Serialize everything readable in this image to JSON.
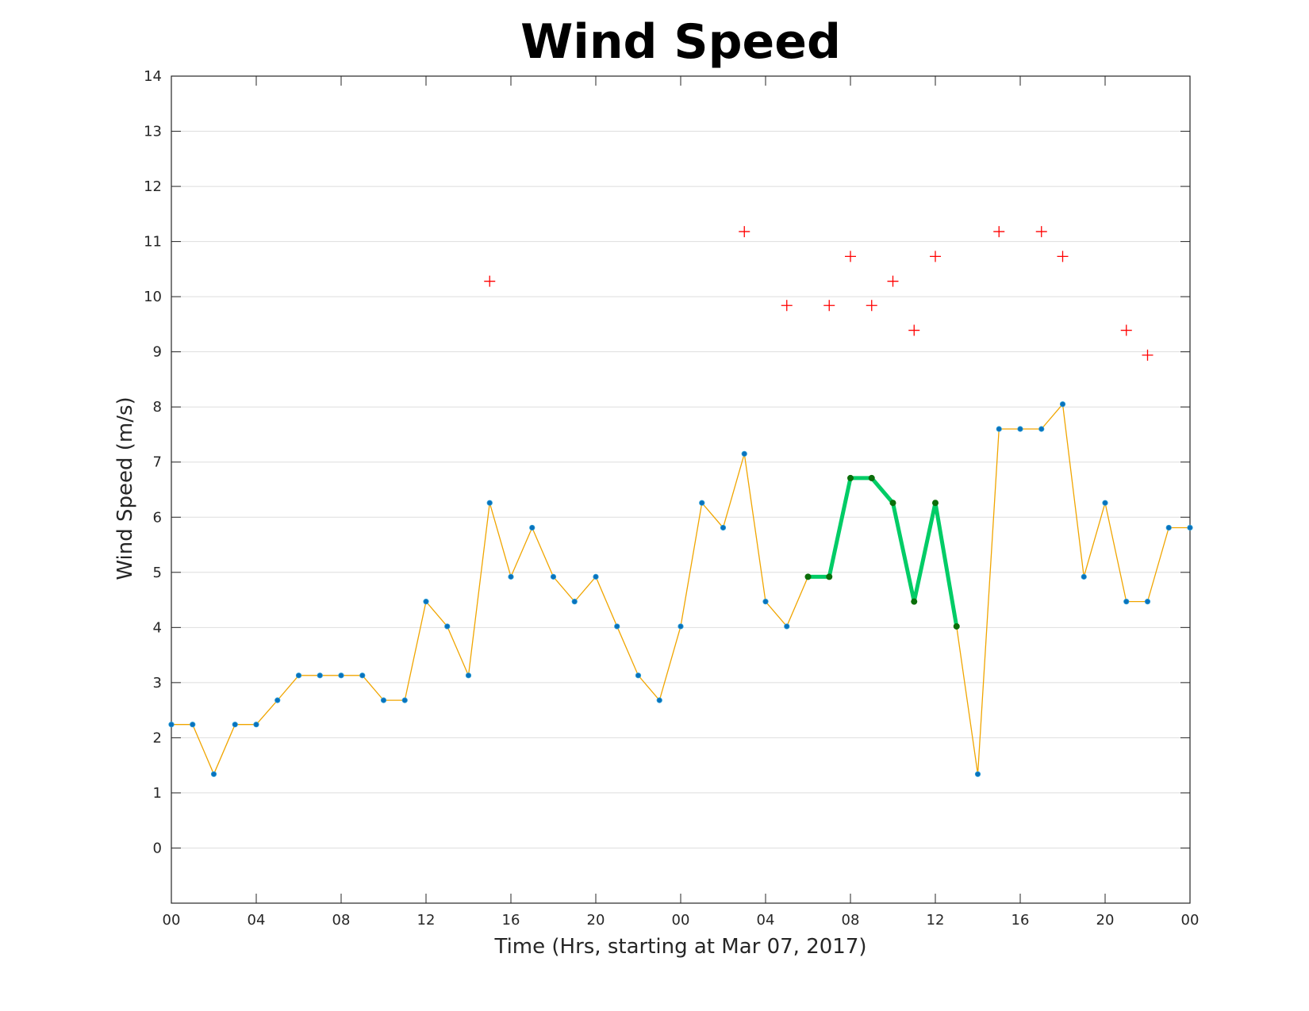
{
  "chart_data": {
    "type": "line",
    "title": "Wind Speed",
    "xlabel": "Time (Hrs, starting at Mar 07, 2017)",
    "ylabel": "Wind Speed (m/s)",
    "xlim": [
      0,
      48
    ],
    "ylim": [
      -1,
      14
    ],
    "grid": "horizontal",
    "x_ticks": [
      {
        "value": 0,
        "label": "00"
      },
      {
        "value": 4,
        "label": "04"
      },
      {
        "value": 8,
        "label": "08"
      },
      {
        "value": 12,
        "label": "12"
      },
      {
        "value": 16,
        "label": "16"
      },
      {
        "value": 20,
        "label": "20"
      },
      {
        "value": 24,
        "label": "00"
      },
      {
        "value": 28,
        "label": "04"
      },
      {
        "value": 32,
        "label": "08"
      },
      {
        "value": 36,
        "label": "12"
      },
      {
        "value": 40,
        "label": "16"
      },
      {
        "value": 44,
        "label": "20"
      },
      {
        "value": 48,
        "label": "00"
      }
    ],
    "y_ticks": [
      0,
      1,
      2,
      3,
      4,
      5,
      6,
      7,
      8,
      9,
      10,
      11,
      12,
      13,
      14
    ],
    "series": [
      {
        "style": "line-with-dots",
        "line_color": "#f0a500",
        "marker_color": "#0a72bd",
        "points": [
          [
            0,
            2.24
          ],
          [
            1,
            2.24
          ],
          [
            2,
            1.34
          ],
          [
            3,
            2.24
          ],
          [
            4,
            2.24
          ],
          [
            5,
            2.68
          ],
          [
            6,
            3.13
          ],
          [
            7,
            3.13
          ],
          [
            8,
            3.13
          ],
          [
            9,
            3.13
          ],
          [
            10,
            2.68
          ],
          [
            11,
            2.68
          ],
          [
            12,
            4.47
          ],
          [
            13,
            4.02
          ],
          [
            14,
            3.13
          ],
          [
            15,
            6.26
          ],
          [
            16,
            4.92
          ],
          [
            17,
            5.81
          ],
          [
            18,
            4.92
          ],
          [
            19,
            4.47
          ],
          [
            20,
            4.92
          ],
          [
            21,
            4.02
          ],
          [
            22,
            3.13
          ],
          [
            23,
            2.68
          ],
          [
            24,
            4.02
          ],
          [
            25,
            6.26
          ],
          [
            26,
            5.81
          ],
          [
            27,
            7.15
          ],
          [
            28,
            4.47
          ],
          [
            29,
            4.02
          ],
          [
            30,
            4.92
          ],
          [
            31,
            4.92
          ],
          [
            32,
            6.71
          ],
          [
            33,
            6.71
          ],
          [
            34,
            6.26
          ],
          [
            35,
            4.47
          ],
          [
            36,
            6.26
          ],
          [
            37,
            4.02
          ],
          [
            38,
            1.34
          ],
          [
            39,
            7.6
          ],
          [
            40,
            7.6
          ],
          [
            41,
            7.6
          ],
          [
            42,
            8.05
          ],
          [
            43,
            4.92
          ],
          [
            44,
            6.26
          ],
          [
            45,
            4.47
          ],
          [
            46,
            4.47
          ],
          [
            47,
            5.81
          ],
          [
            48,
            5.81
          ]
        ]
      },
      {
        "style": "highlight",
        "line_color": "#00cc66",
        "marker_color": "#0a6e0a",
        "points": [
          [
            30,
            4.92
          ],
          [
            31,
            4.92
          ],
          [
            32,
            6.71
          ],
          [
            33,
            6.71
          ],
          [
            34,
            6.26
          ],
          [
            35,
            4.47
          ],
          [
            36,
            6.26
          ],
          [
            37,
            4.02
          ]
        ]
      },
      {
        "style": "plus-markers",
        "marker_color": "#ff0000",
        "points": [
          [
            15,
            10.28
          ],
          [
            27,
            11.18
          ],
          [
            29,
            9.84
          ],
          [
            31,
            9.84
          ],
          [
            32,
            10.73
          ],
          [
            33,
            9.84
          ],
          [
            34,
            10.28
          ],
          [
            35,
            9.39
          ],
          [
            36,
            10.73
          ],
          [
            39,
            11.18
          ],
          [
            41,
            11.18
          ],
          [
            42,
            10.73
          ],
          [
            45,
            9.39
          ],
          [
            46,
            8.94
          ]
        ]
      }
    ]
  }
}
